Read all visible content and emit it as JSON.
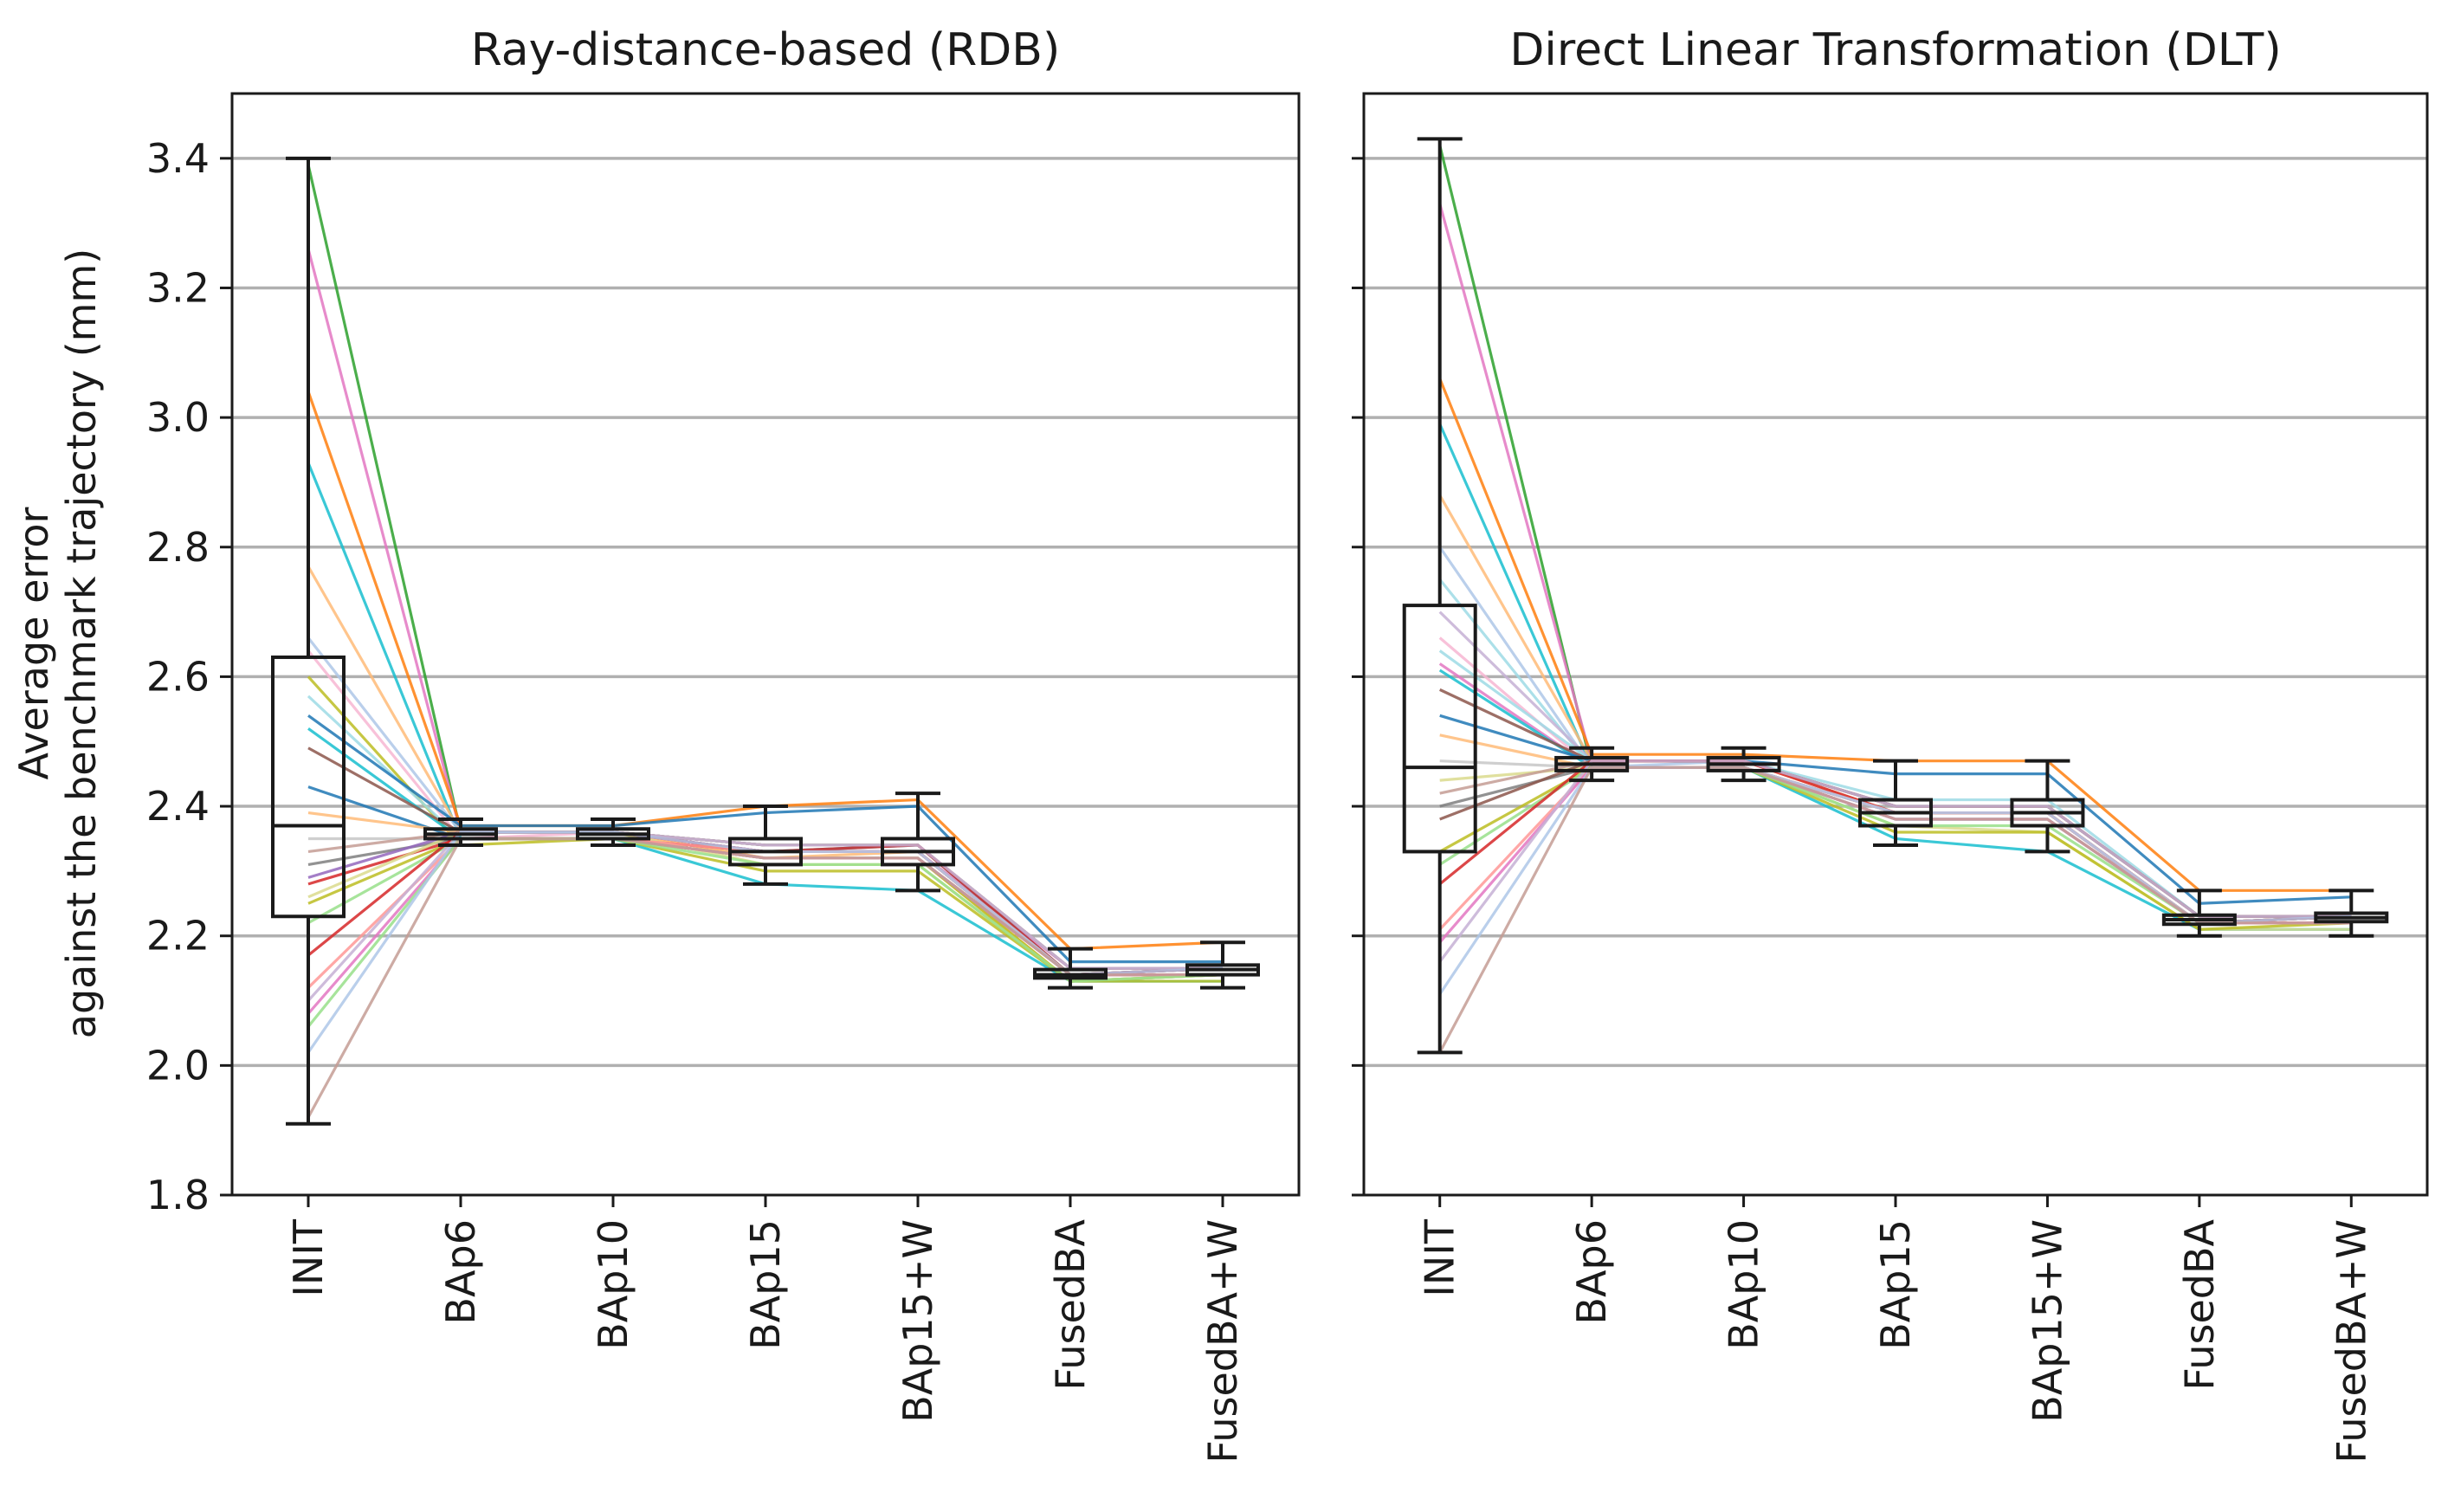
{
  "chart_data": [
    {
      "type": "box",
      "title": "Ray-distance-based (RDB)",
      "ylabel_lines": [
        "Average error",
        "against the benchmark trajectory (mm)"
      ],
      "categories": [
        "INIT",
        "BAp6",
        "BAp10",
        "BAp15",
        "BAp15+W",
        "FusedBA",
        "FusedBA+W"
      ],
      "ylim": [
        1.8,
        3.5
      ],
      "yticks": [
        "1.8",
        "2.0",
        "2.2",
        "2.4",
        "2.6",
        "2.8",
        "3.0",
        "3.2",
        "3.4"
      ],
      "grid": "horizontal",
      "boxes": [
        {
          "category": "INIT",
          "whisker_low": 1.91,
          "q1": 2.23,
          "median": 2.37,
          "q3": 2.63,
          "whisker_high": 3.4
        },
        {
          "category": "BAp6",
          "whisker_low": 2.34,
          "q1": 2.35,
          "median": 2.357,
          "q3": 2.365,
          "whisker_high": 2.38
        },
        {
          "category": "BAp10",
          "whisker_low": 2.34,
          "q1": 2.35,
          "median": 2.357,
          "q3": 2.365,
          "whisker_high": 2.38
        },
        {
          "category": "BAp15",
          "whisker_low": 2.28,
          "q1": 2.31,
          "median": 2.33,
          "q3": 2.35,
          "whisker_high": 2.4
        },
        {
          "category": "BAp15+W",
          "whisker_low": 2.27,
          "q1": 2.31,
          "median": 2.33,
          "q3": 2.35,
          "whisker_high": 2.42
        },
        {
          "category": "FusedBA",
          "whisker_low": 2.12,
          "q1": 2.135,
          "median": 2.14,
          "q3": 2.148,
          "whisker_high": 2.18
        },
        {
          "category": "FusedBA+W",
          "whisker_low": 2.12,
          "q1": 2.14,
          "median": 2.148,
          "q3": 2.155,
          "whisker_high": 2.19
        }
      ],
      "series": [
        {
          "color": "#2ca02c",
          "values": [
            3.39,
            2.36,
            2.36,
            2.34,
            2.34,
            2.14,
            2.15
          ]
        },
        {
          "color": "#e377c2",
          "values": [
            3.26,
            2.36,
            2.36,
            2.33,
            2.33,
            2.15,
            2.15
          ]
        },
        {
          "color": "#ff7f0e",
          "values": [
            3.04,
            2.37,
            2.37,
            2.4,
            2.41,
            2.18,
            2.19
          ]
        },
        {
          "color": "#17becf",
          "values": [
            2.93,
            2.35,
            2.35,
            2.33,
            2.34,
            2.14,
            2.14
          ]
        },
        {
          "color": "#ffbb78",
          "values": [
            2.77,
            2.36,
            2.36,
            2.32,
            2.32,
            2.13,
            2.14
          ]
        },
        {
          "color": "#aec7e8",
          "values": [
            2.66,
            2.36,
            2.36,
            2.34,
            2.34,
            2.15,
            2.15
          ]
        },
        {
          "color": "#f7b6d2",
          "values": [
            2.64,
            2.35,
            2.36,
            2.33,
            2.33,
            2.14,
            2.14
          ]
        },
        {
          "color": "#bcbd22",
          "values": [
            2.6,
            2.34,
            2.35,
            2.32,
            2.32,
            2.13,
            2.14
          ]
        },
        {
          "color": "#9edae5",
          "values": [
            2.57,
            2.35,
            2.35,
            2.33,
            2.33,
            2.14,
            2.15
          ]
        },
        {
          "color": "#1f77b4",
          "values": [
            2.54,
            2.37,
            2.37,
            2.39,
            2.4,
            2.16,
            2.16
          ]
        },
        {
          "color": "#17becf",
          "values": [
            2.52,
            2.35,
            2.35,
            2.28,
            2.27,
            2.13,
            2.13
          ]
        },
        {
          "color": "#8c564b",
          "values": [
            2.49,
            2.36,
            2.36,
            2.34,
            2.34,
            2.15,
            2.15
          ]
        },
        {
          "color": "#1f77b4",
          "values": [
            2.43,
            2.35,
            2.35,
            2.33,
            2.33,
            2.14,
            2.14
          ]
        },
        {
          "color": "#ffbb78",
          "values": [
            2.39,
            2.36,
            2.36,
            2.32,
            2.33,
            2.14,
            2.15
          ]
        },
        {
          "color": "#c7c7c7",
          "values": [
            2.35,
            2.35,
            2.35,
            2.33,
            2.33,
            2.14,
            2.14
          ]
        },
        {
          "color": "#c49c94",
          "values": [
            2.33,
            2.36,
            2.36,
            2.34,
            2.34,
            2.15,
            2.15
          ]
        },
        {
          "color": "#7f7f7f",
          "values": [
            2.31,
            2.35,
            2.35,
            2.32,
            2.32,
            2.14,
            2.14
          ]
        },
        {
          "color": "#9467bd",
          "values": [
            2.29,
            2.36,
            2.36,
            2.33,
            2.33,
            2.14,
            2.15
          ]
        },
        {
          "color": "#d62728",
          "values": [
            2.28,
            2.35,
            2.35,
            2.33,
            2.34,
            2.14,
            2.14
          ]
        },
        {
          "color": "#dbdb8d",
          "values": [
            2.26,
            2.36,
            2.36,
            2.31,
            2.31,
            2.13,
            2.14
          ]
        },
        {
          "color": "#bcbd22",
          "values": [
            2.25,
            2.35,
            2.35,
            2.3,
            2.3,
            2.13,
            2.13
          ]
        },
        {
          "color": "#98df8a",
          "values": [
            2.22,
            2.35,
            2.35,
            2.32,
            2.32,
            2.14,
            2.14
          ]
        },
        {
          "color": "#d62728",
          "values": [
            2.17,
            2.36,
            2.36,
            2.33,
            2.33,
            2.14,
            2.15
          ]
        },
        {
          "color": "#ff9896",
          "values": [
            2.12,
            2.35,
            2.35,
            2.33,
            2.33,
            2.14,
            2.14
          ]
        },
        {
          "color": "#c5b0d5",
          "values": [
            2.1,
            2.36,
            2.36,
            2.34,
            2.34,
            2.15,
            2.15
          ]
        },
        {
          "color": "#e377c2",
          "values": [
            2.08,
            2.35,
            2.35,
            2.32,
            2.32,
            2.14,
            2.14
          ]
        },
        {
          "color": "#98df8a",
          "values": [
            2.06,
            2.35,
            2.35,
            2.31,
            2.31,
            2.13,
            2.14
          ]
        },
        {
          "color": "#aec7e8",
          "values": [
            2.02,
            2.36,
            2.36,
            2.33,
            2.33,
            2.14,
            2.15
          ]
        },
        {
          "color": "#c49c94",
          "values": [
            1.92,
            2.35,
            2.35,
            2.32,
            2.32,
            2.14,
            2.14
          ]
        }
      ]
    },
    {
      "type": "box",
      "title": "Direct Linear Transformation (DLT)",
      "ylabel_lines": [],
      "categories": [
        "INIT",
        "BAp6",
        "BAp10",
        "BAp15",
        "BAp15+W",
        "FusedBA",
        "FusedBA+W"
      ],
      "ylim": [
        1.8,
        3.5
      ],
      "yticks": [],
      "grid": "horizontal",
      "boxes": [
        {
          "category": "INIT",
          "whisker_low": 2.02,
          "q1": 2.33,
          "median": 2.46,
          "q3": 2.71,
          "whisker_high": 3.43
        },
        {
          "category": "BAp6",
          "whisker_low": 2.44,
          "q1": 2.455,
          "median": 2.465,
          "q3": 2.475,
          "whisker_high": 2.49
        },
        {
          "category": "BAp10",
          "whisker_low": 2.44,
          "q1": 2.455,
          "median": 2.465,
          "q3": 2.475,
          "whisker_high": 2.49
        },
        {
          "category": "BAp15",
          "whisker_low": 2.34,
          "q1": 2.37,
          "median": 2.39,
          "q3": 2.41,
          "whisker_high": 2.47
        },
        {
          "category": "BAp15+W",
          "whisker_low": 2.33,
          "q1": 2.37,
          "median": 2.39,
          "q3": 2.41,
          "whisker_high": 2.47
        },
        {
          "category": "FusedBA",
          "whisker_low": 2.2,
          "q1": 2.218,
          "median": 2.225,
          "q3": 2.232,
          "whisker_high": 2.27
        },
        {
          "category": "FusedBA+W",
          "whisker_low": 2.2,
          "q1": 2.222,
          "median": 2.228,
          "q3": 2.235,
          "whisker_high": 2.27
        }
      ],
      "series": [
        {
          "color": "#2ca02c",
          "values": [
            3.42,
            2.46,
            2.46,
            2.39,
            2.39,
            2.22,
            2.23
          ]
        },
        {
          "color": "#e377c2",
          "values": [
            3.33,
            2.47,
            2.47,
            2.4,
            2.4,
            2.23,
            2.23
          ]
        },
        {
          "color": "#ff7f0e",
          "values": [
            3.06,
            2.48,
            2.48,
            2.47,
            2.47,
            2.27,
            2.27
          ]
        },
        {
          "color": "#17becf",
          "values": [
            2.99,
            2.46,
            2.46,
            2.38,
            2.38,
            2.22,
            2.22
          ]
        },
        {
          "color": "#ffbb78",
          "values": [
            2.88,
            2.47,
            2.47,
            2.39,
            2.39,
            2.22,
            2.23
          ]
        },
        {
          "color": "#aec7e8",
          "values": [
            2.8,
            2.46,
            2.47,
            2.4,
            2.4,
            2.23,
            2.23
          ]
        },
        {
          "color": "#9edae5",
          "values": [
            2.75,
            2.46,
            2.46,
            2.38,
            2.38,
            2.22,
            2.22
          ]
        },
        {
          "color": "#c5b0d5",
          "values": [
            2.7,
            2.47,
            2.47,
            2.4,
            2.4,
            2.23,
            2.23
          ]
        },
        {
          "color": "#f7b6d2",
          "values": [
            2.66,
            2.46,
            2.46,
            2.39,
            2.39,
            2.22,
            2.23
          ]
        },
        {
          "color": "#9edae5",
          "values": [
            2.64,
            2.47,
            2.47,
            2.41,
            2.41,
            2.23,
            2.23
          ]
        },
        {
          "color": "#e377c2",
          "values": [
            2.62,
            2.46,
            2.46,
            2.39,
            2.39,
            2.22,
            2.22
          ]
        },
        {
          "color": "#17becf",
          "values": [
            2.61,
            2.46,
            2.46,
            2.35,
            2.33,
            2.21,
            2.21
          ]
        },
        {
          "color": "#8c564b",
          "values": [
            2.58,
            2.47,
            2.47,
            2.4,
            2.4,
            2.23,
            2.23
          ]
        },
        {
          "color": "#1f77b4",
          "values": [
            2.54,
            2.47,
            2.47,
            2.45,
            2.45,
            2.25,
            2.26
          ]
        },
        {
          "color": "#ffbb78",
          "values": [
            2.51,
            2.46,
            2.46,
            2.39,
            2.39,
            2.22,
            2.23
          ]
        },
        {
          "color": "#c7c7c7",
          "values": [
            2.47,
            2.46,
            2.46,
            2.38,
            2.38,
            2.22,
            2.22
          ]
        },
        {
          "color": "#dbdb8d",
          "values": [
            2.44,
            2.46,
            2.46,
            2.37,
            2.36,
            2.21,
            2.21
          ]
        },
        {
          "color": "#c49c94",
          "values": [
            2.42,
            2.47,
            2.47,
            2.4,
            2.4,
            2.23,
            2.23
          ]
        },
        {
          "color": "#7f7f7f",
          "values": [
            2.4,
            2.46,
            2.46,
            2.39,
            2.39,
            2.22,
            2.23
          ]
        },
        {
          "color": "#8c564b",
          "values": [
            2.38,
            2.47,
            2.47,
            2.4,
            2.4,
            2.23,
            2.23
          ]
        },
        {
          "color": "#bcbd22",
          "values": [
            2.33,
            2.46,
            2.46,
            2.36,
            2.36,
            2.21,
            2.22
          ]
        },
        {
          "color": "#98df8a",
          "values": [
            2.31,
            2.46,
            2.46,
            2.37,
            2.37,
            2.22,
            2.22
          ]
        },
        {
          "color": "#d62728",
          "values": [
            2.28,
            2.47,
            2.47,
            2.39,
            2.39,
            2.22,
            2.23
          ]
        },
        {
          "color": "#ff9896",
          "values": [
            2.21,
            2.46,
            2.46,
            2.39,
            2.39,
            2.22,
            2.22
          ]
        },
        {
          "color": "#e377c2",
          "values": [
            2.19,
            2.46,
            2.46,
            2.38,
            2.38,
            2.22,
            2.22
          ]
        },
        {
          "color": "#c5b0d5",
          "values": [
            2.16,
            2.47,
            2.47,
            2.4,
            2.4,
            2.23,
            2.23
          ]
        },
        {
          "color": "#aec7e8",
          "values": [
            2.11,
            2.46,
            2.46,
            2.39,
            2.39,
            2.22,
            2.23
          ]
        },
        {
          "color": "#c49c94",
          "values": [
            2.02,
            2.46,
            2.46,
            2.38,
            2.38,
            2.22,
            2.22
          ]
        }
      ]
    }
  ]
}
